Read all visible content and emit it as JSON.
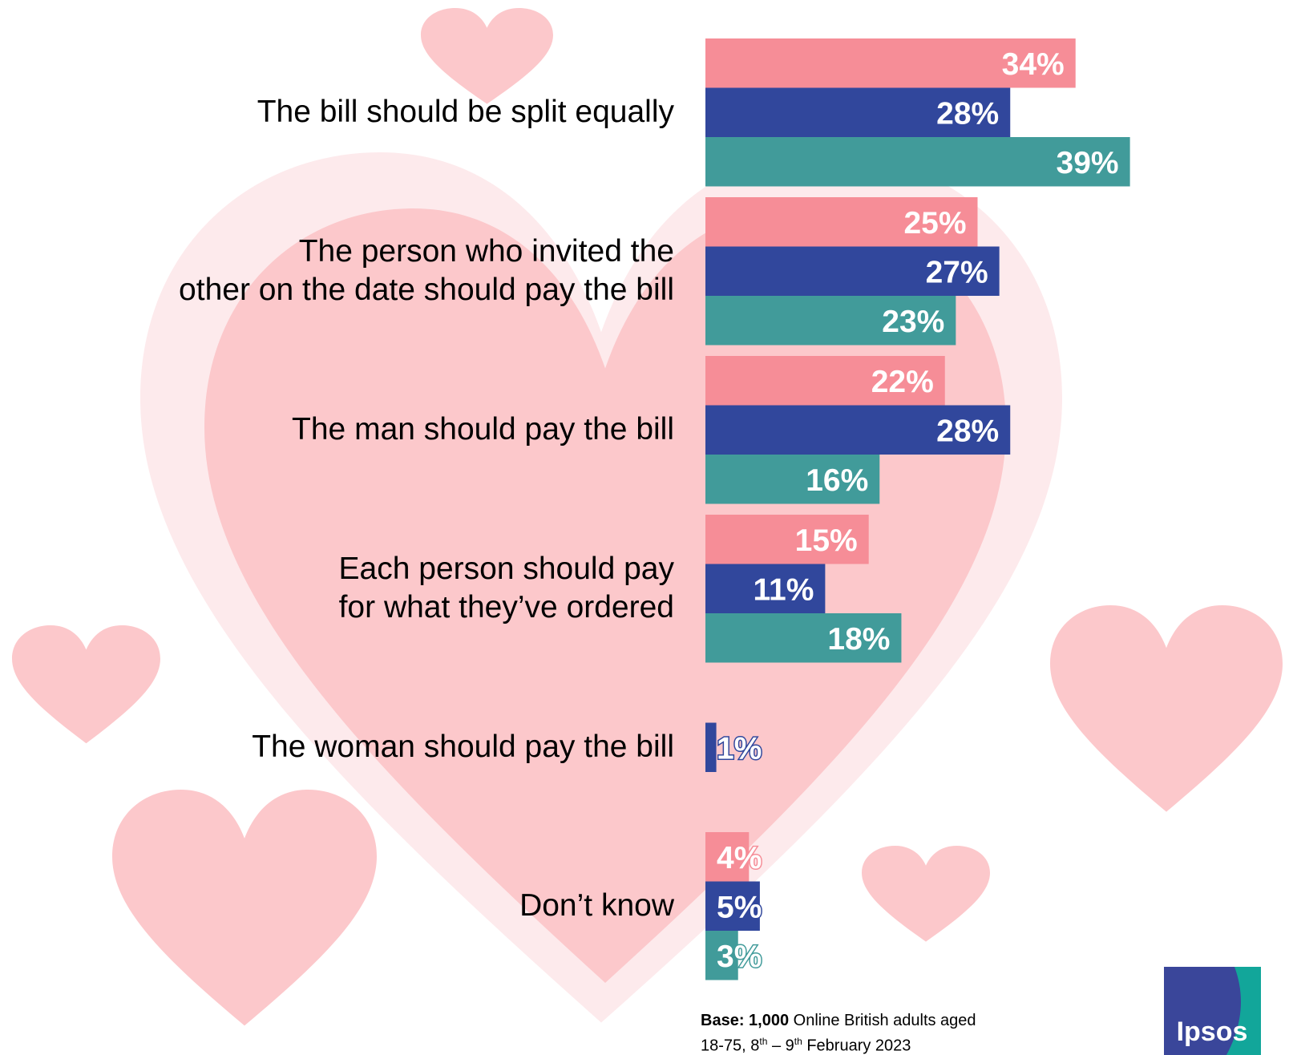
{
  "chart_data": {
    "type": "bar",
    "orientation": "horizontal",
    "categories": [
      "The bill should be split equally",
      "The person who invited the\nother on the date should pay the bill",
      "The man should pay the bill",
      "Each person should pay\nfor what they’ve ordered",
      "The woman should pay the bill",
      "Don’t know"
    ],
    "series": [
      {
        "color": "#f68d97",
        "values": [
          34,
          25,
          22,
          15,
          null,
          4
        ],
        "value_labels": [
          "34%",
          "25%",
          "22%",
          "15%",
          null,
          "4%"
        ]
      },
      {
        "color": "#31479c",
        "values": [
          28,
          27,
          28,
          11,
          1,
          5
        ],
        "value_labels": [
          "28%",
          "27%",
          "28%",
          "11%",
          "1%",
          "5%"
        ]
      },
      {
        "color": "#419b9a",
        "values": [
          39,
          23,
          16,
          18,
          null,
          3
        ],
        "value_labels": [
          "39%",
          "23%",
          "16%",
          "18%",
          null,
          "3%"
        ]
      }
    ]
  },
  "footnote": {
    "bold": "Base: 1,000",
    "line1": " Online British adults aged",
    "line2a": "18-75, 8",
    "sup1": "th",
    "line2b": " – 9",
    "sup2": "th",
    "line2c": " February 2023"
  },
  "logo": "Ipsos"
}
